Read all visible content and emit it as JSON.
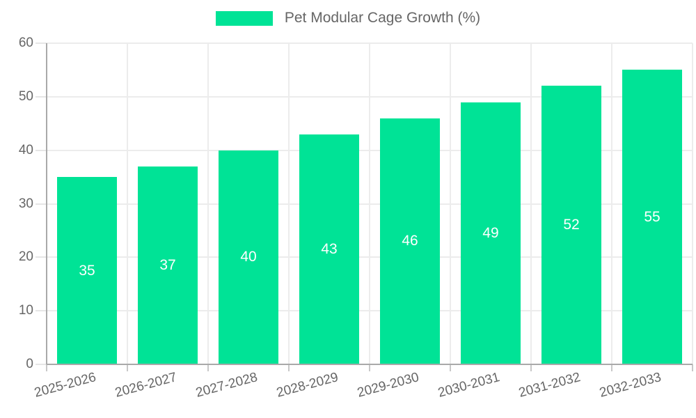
{
  "legend": {
    "label": "Pet Modular Cage Growth (%)"
  },
  "chart_data": {
    "type": "bar",
    "title": "Pet Modular Cage Growth (%)",
    "categories": [
      "2025-2026",
      "2026-2027",
      "2027-2028",
      "2028-2029",
      "2029-2030",
      "2030-2031",
      "2031-2032",
      "2032-2033"
    ],
    "values": [
      35,
      37,
      40,
      43,
      46,
      49,
      52,
      55
    ],
    "yticks": [
      0,
      10,
      20,
      30,
      40,
      50,
      60
    ],
    "ylim": [
      0,
      60
    ],
    "xlabel": "",
    "ylabel": "",
    "legend_position": "top",
    "grid": true,
    "x_tick_rotation_deg": -15,
    "colors": {
      "bar": "#00E396",
      "value_label": "#FFFFFF",
      "tick_text": "#666666",
      "grid": "#ECECEC",
      "axis": "#A9A9A9"
    }
  }
}
